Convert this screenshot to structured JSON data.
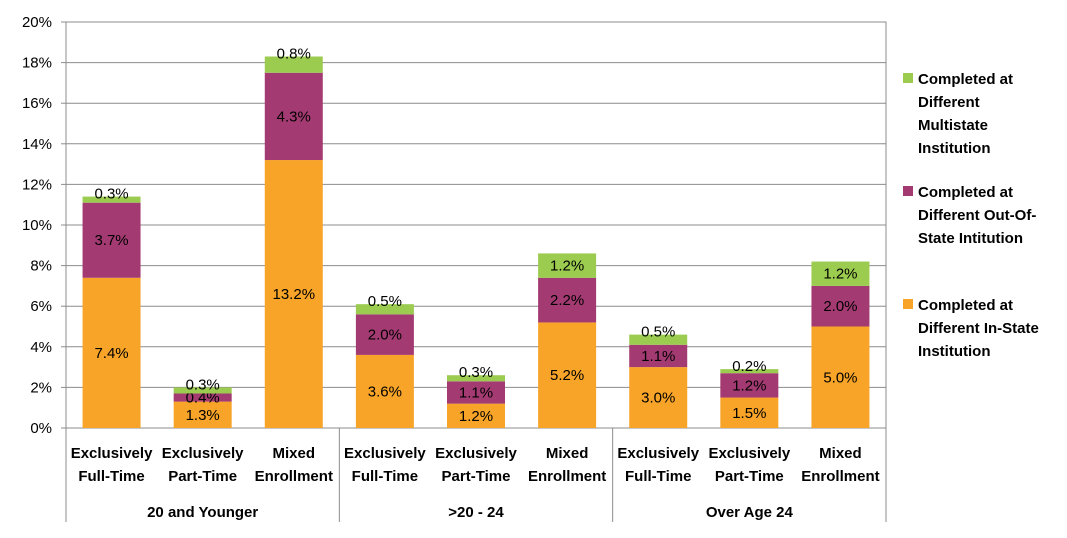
{
  "chart_data": {
    "type": "bar",
    "stacked": true,
    "title": "",
    "xlabel": "",
    "ylabel": "",
    "ylim": [
      0,
      20
    ],
    "y_tick_step": 2,
    "y_tick_suffix": "%",
    "grid": true,
    "legend_position": "right",
    "groups": [
      {
        "label": "20 and Younger",
        "categories": [
          "Exclusively|Full-Time",
          "Exclusively|Part-Time",
          "Mixed|Enrollment"
        ]
      },
      {
        "label": ">20 - 24",
        "categories": [
          "Exclusively|Full-Time",
          "Exclusively|Part-Time",
          "Mixed|Enrollment"
        ]
      },
      {
        "label": "Over Age 24",
        "categories": [
          "Exclusively|Full-Time",
          "Exclusively|Part-Time",
          "Mixed|Enrollment"
        ]
      }
    ],
    "series": [
      {
        "name": "Completed at Different In-State Institution",
        "legend_lines": [
          "Completed at",
          "Different In-State",
          "Institution"
        ],
        "color": "#F7A428",
        "values": [
          7.4,
          1.3,
          13.2,
          3.6,
          1.2,
          5.2,
          3.0,
          1.5,
          5.0
        ]
      },
      {
        "name": "Completed at Different Out-Of-State Intitution",
        "legend_lines": [
          "Completed at",
          "Different Out-Of-",
          "State Intitution"
        ],
        "color": "#A33B72",
        "values": [
          3.7,
          0.4,
          4.3,
          2.0,
          1.1,
          2.2,
          1.1,
          1.2,
          2.0
        ]
      },
      {
        "name": "Completed at Different Multistate Institution",
        "legend_lines": [
          "Completed at",
          "Different",
          "Multistate",
          "Institution"
        ],
        "color": "#9BCB4F",
        "values": [
          0.3,
          0.3,
          0.8,
          0.5,
          0.3,
          1.2,
          0.5,
          0.2,
          1.2
        ]
      }
    ],
    "legend_order": [
      2,
      1,
      0
    ]
  }
}
